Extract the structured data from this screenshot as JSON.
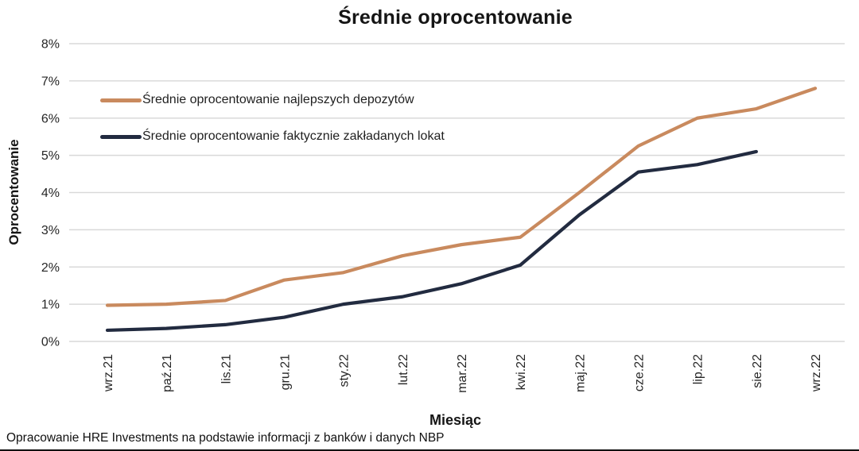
{
  "title": "Średnie oprocentowanie",
  "footer": "Opracowanie HRE Investments na podstawie informacji z banków i danych NBP",
  "colors": {
    "series_best_deposits": "#C98A5E",
    "series_actual_deposits": "#222B40",
    "gridline": "#D9D9D9",
    "tick_text": "#262626"
  },
  "chart_data": {
    "type": "line",
    "title": "Średnie oprocentowanie",
    "xlabel": "Miesiąc",
    "ylabel": "Oprocentowanie",
    "categories": [
      "wrz.21",
      "paź.21",
      "lis.21",
      "gru.21",
      "sty.22",
      "lut.22",
      "mar.22",
      "kwi.22",
      "maj.22",
      "cze.22",
      "lip.22",
      "sie.22",
      "wrz.22"
    ],
    "ytick_labels": [
      "0%",
      "1%",
      "2%",
      "3%",
      "4%",
      "5%",
      "6%",
      "7%",
      "8%"
    ],
    "ylim": [
      0,
      8
    ],
    "grid": true,
    "legend_position": "top-left-inside",
    "series": [
      {
        "name": "Średnie oprocentowanie najlepszych depozytów",
        "color": "#C98A5E",
        "values": [
          0.97,
          1.0,
          1.1,
          1.65,
          1.85,
          2.3,
          2.6,
          2.8,
          4.0,
          5.25,
          6.0,
          6.25,
          6.8
        ]
      },
      {
        "name": "Średnie oprocentowanie faktycznie zakładanych lokat",
        "color": "#222B40",
        "values": [
          0.3,
          0.35,
          0.45,
          0.65,
          1.0,
          1.2,
          1.55,
          2.05,
          3.4,
          4.55,
          4.75,
          5.1,
          null
        ]
      }
    ]
  }
}
